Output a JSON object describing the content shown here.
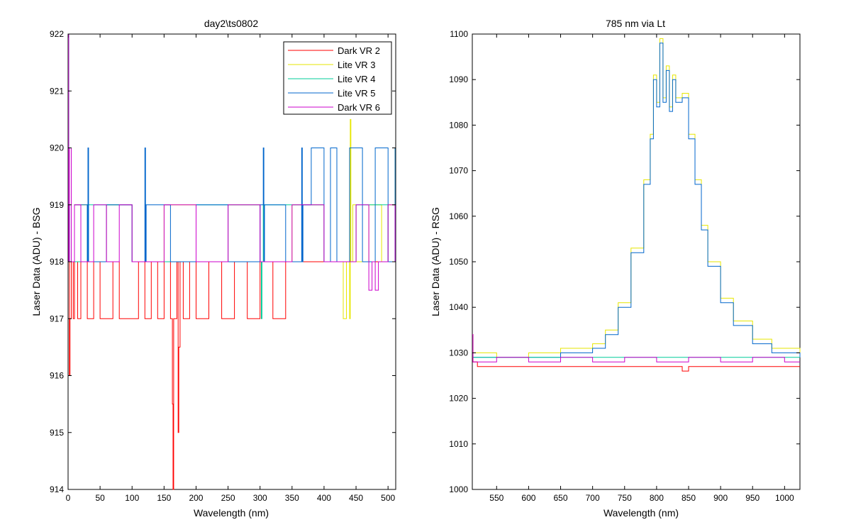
{
  "chart_data": [
    {
      "type": "line",
      "title": "day2\\ts0802",
      "xlabel": "Wavelength (nm)",
      "ylabel": "Laser Data (ADU) - BSG",
      "xlim": [
        0,
        512
      ],
      "ylim": [
        914,
        922
      ],
      "xticks": [
        "0",
        "50",
        "100",
        "150",
        "200",
        "250",
        "300",
        "350",
        "400",
        "450",
        "500"
      ],
      "yticks": [
        "914",
        "915",
        "916",
        "917",
        "918",
        "919",
        "920",
        "921",
        "922"
      ],
      "grid": false,
      "legend_position": "top-right",
      "legend": [
        "Dark VR 2",
        "Lite VR 3",
        "Lite VR 4",
        "Lite VR 5",
        "Dark VR 6"
      ],
      "series": [
        {
          "name": "Dark VR 2",
          "color": "#ff0000",
          "x": [
            0,
            1,
            2,
            3,
            5,
            8,
            10,
            15,
            20,
            30,
            40,
            50,
            60,
            70,
            80,
            90,
            100,
            110,
            120,
            130,
            140,
            150,
            160,
            163,
            164,
            165,
            170,
            172,
            173,
            175,
            180,
            190,
            200,
            220,
            240,
            260,
            280,
            300,
            320,
            340,
            360,
            380,
            400,
            420,
            440,
            460,
            480,
            500,
            511
          ],
          "y": [
            922,
            919,
            916,
            917,
            918,
            917,
            918,
            917,
            918,
            917,
            918,
            917,
            917,
            918,
            917,
            917,
            917,
            918,
            917,
            918,
            917,
            918,
            917,
            915.5,
            914,
            917,
            918,
            915,
            916.5,
            918,
            917,
            918,
            917,
            918,
            917,
            918,
            917,
            918,
            917,
            918,
            918,
            918,
            918,
            918,
            918,
            918,
            918,
            918,
            918
          ]
        },
        {
          "name": "Lite VR 3",
          "color": "#e6e600",
          "x": [
            0,
            1,
            2,
            10,
            30,
            60,
            100,
            150,
            200,
            250,
            300,
            350,
            400,
            430,
            435,
            440,
            441,
            442,
            445,
            450,
            470,
            490,
            500,
            511
          ],
          "y": [
            922,
            919,
            918,
            919,
            918,
            919,
            918,
            919,
            918,
            919,
            918,
            919,
            918,
            917,
            918,
            917,
            920.5,
            918,
            919,
            918,
            919,
            918,
            919,
            920
          ]
        },
        {
          "name": "Lite VR 4",
          "color": "#00cc99",
          "x": [
            0,
            1,
            2,
            30,
            100,
            200,
            300,
            302,
            303,
            305,
            400,
            450,
            500,
            511
          ],
          "y": [
            922,
            919,
            918,
            919,
            918,
            919,
            918,
            917,
            918,
            919,
            918,
            919,
            918,
            919
          ]
        },
        {
          "name": "Lite VR 5",
          "color": "#0066cc",
          "x": [
            0,
            1,
            2,
            10,
            30,
            31,
            32,
            60,
            100,
            120,
            121,
            122,
            160,
            200,
            250,
            300,
            305,
            306,
            307,
            340,
            365,
            366,
            367,
            380,
            400,
            410,
            420,
            440,
            460,
            480,
            500,
            511
          ],
          "y": [
            922,
            919,
            918,
            919,
            918,
            920,
            918,
            919,
            918,
            920,
            918,
            919,
            918,
            919,
            918,
            919,
            920,
            918,
            919,
            918,
            920,
            918,
            919,
            920,
            918,
            920,
            918,
            920,
            918,
            920,
            918,
            920
          ]
        },
        {
          "name": "Dark VR 6",
          "color": "#cc00cc",
          "x": [
            0,
            1,
            2,
            5,
            10,
            20,
            40,
            60,
            80,
            100,
            150,
            200,
            250,
            300,
            350,
            400,
            450,
            470,
            475,
            480,
            485,
            500,
            511
          ],
          "y": [
            922,
            918,
            920,
            918,
            919,
            918,
            919,
            918,
            919,
            918,
            919,
            918,
            919,
            918,
            919,
            918,
            919,
            917.5,
            918,
            917.5,
            918,
            919,
            918
          ]
        }
      ]
    },
    {
      "type": "line",
      "title": "785 nm via Lt",
      "xlabel": "Wavelength (nm)",
      "ylabel": "Laser Data (ADU) - RSG",
      "xlim": [
        512,
        1024
      ],
      "ylim": [
        1000,
        1100
      ],
      "xticks": [
        "550",
        "600",
        "650",
        "700",
        "750",
        "800",
        "850",
        "900",
        "950",
        "1000"
      ],
      "yticks": [
        "1000",
        "1010",
        "1020",
        "1030",
        "1040",
        "1050",
        "1060",
        "1070",
        "1080",
        "1090",
        "1100"
      ],
      "grid": false,
      "series": [
        {
          "name": "",
          "color": "#e6e600",
          "x": [
            512,
            513,
            520,
            550,
            600,
            650,
            700,
            720,
            740,
            760,
            780,
            790,
            795,
            800,
            805,
            810,
            815,
            820,
            825,
            830,
            840,
            850,
            860,
            870,
            880,
            900,
            920,
            950,
            980,
            1000,
            1024
          ],
          "y": [
            1034,
            1030,
            1030,
            1029,
            1030,
            1031,
            1032,
            1035,
            1041,
            1053,
            1068,
            1078,
            1091,
            1085,
            1099,
            1086,
            1093,
            1084,
            1091,
            1086,
            1087,
            1078,
            1068,
            1058,
            1050,
            1042,
            1037,
            1033,
            1031,
            1031,
            1030
          ]
        },
        {
          "name": "",
          "color": "#0066cc",
          "x": [
            512,
            513,
            520,
            550,
            600,
            650,
            700,
            720,
            740,
            760,
            780,
            790,
            795,
            800,
            805,
            810,
            815,
            820,
            825,
            830,
            840,
            850,
            860,
            870,
            880,
            900,
            920,
            950,
            980,
            1000,
            1024
          ],
          "y": [
            1034,
            1029,
            1029,
            1029,
            1029,
            1030,
            1031,
            1034,
            1040,
            1052,
            1067,
            1077,
            1090,
            1084,
            1098,
            1085,
            1092,
            1083,
            1090,
            1085,
            1086,
            1077,
            1067,
            1057,
            1049,
            1041,
            1036,
            1032,
            1030,
            1030,
            1029
          ]
        },
        {
          "name": "",
          "color": "#00cc99",
          "x": [
            512,
            513,
            520,
            600,
            700,
            800,
            900,
            1000,
            1024
          ],
          "y": [
            1034,
            1029,
            1029,
            1029,
            1029,
            1029,
            1029,
            1029,
            1029
          ]
        },
        {
          "name": "",
          "color": "#ff0000",
          "x": [
            512,
            513,
            520,
            600,
            700,
            800,
            835,
            840,
            845,
            850,
            900,
            1000,
            1024
          ],
          "y": [
            1034,
            1028,
            1027,
            1027,
            1027,
            1027,
            1027,
            1026,
            1026,
            1027,
            1027,
            1027,
            1027
          ]
        },
        {
          "name": "",
          "color": "#cc00cc",
          "x": [
            512,
            513,
            520,
            550,
            600,
            650,
            700,
            750,
            800,
            850,
            900,
            950,
            1000,
            1024
          ],
          "y": [
            1034,
            1028,
            1028,
            1029,
            1028,
            1029,
            1028,
            1029,
            1028,
            1029,
            1028,
            1029,
            1028,
            1028
          ]
        }
      ]
    }
  ]
}
